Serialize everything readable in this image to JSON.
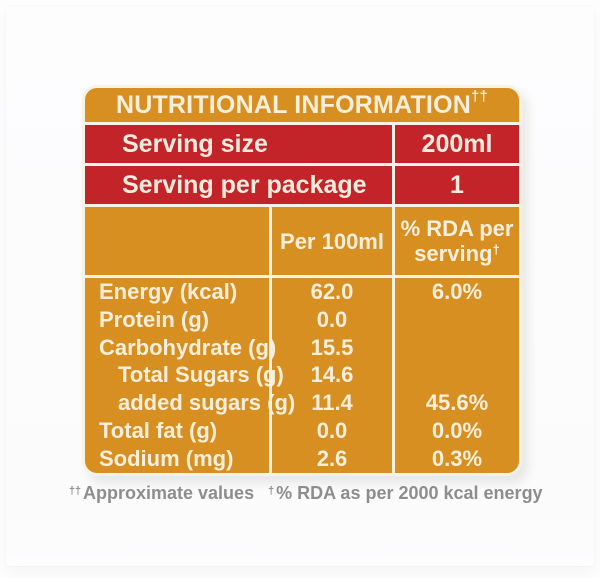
{
  "label": {
    "title": "NUTRITIONAL INFORMATION",
    "title_sup": "††",
    "serving_rows": [
      {
        "name": "Serving size",
        "value": "200ml"
      },
      {
        "name": "Serving per package",
        "value": "1"
      }
    ],
    "columns": {
      "per_100ml": "Per 100ml",
      "rda_line1": "% RDA per",
      "rda_line2": "serving",
      "rda_sup": "†"
    },
    "nutrients": [
      {
        "name": "Energy (kcal)",
        "per_100ml": "62.0",
        "rda_per_serving": "6.0%"
      },
      {
        "name": "Protein (g)",
        "per_100ml": "0.0",
        "rda_per_serving": ""
      },
      {
        "name": "Carbohydrate (g)",
        "per_100ml": "15.5",
        "rda_per_serving": ""
      },
      {
        "name": "Total Sugars (g)",
        "per_100ml": "14.6",
        "rda_per_serving": ""
      },
      {
        "name": "added sugars (g)",
        "per_100ml": "11.4",
        "rda_per_serving": "45.6%"
      },
      {
        "name": "Total fat (g)",
        "per_100ml": "0.0",
        "rda_per_serving": "0.0%"
      },
      {
        "name": "Sodium (mg)",
        "per_100ml": "2.6",
        "rda_per_serving": "0.3%"
      }
    ],
    "footnotes": [
      {
        "sup": "††",
        "text": "Approximate values"
      },
      {
        "sup": "†",
        "text": "% RDA as per 2000 kcal energy"
      }
    ],
    "colors": {
      "orange": "#D78F22",
      "red": "#C2242A",
      "cream_text": "#F7EFDB",
      "separator": "#F7F2E6",
      "footnote_gray": "#8D8D8D"
    }
  }
}
